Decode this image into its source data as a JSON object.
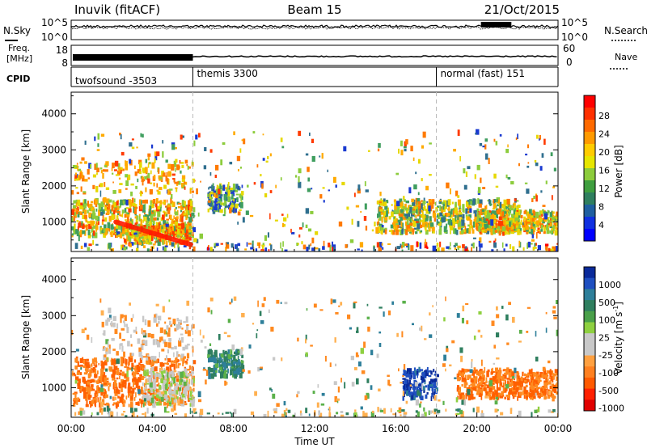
{
  "header": {
    "station": "Inuvik (fitACF)",
    "beam": "Beam 15",
    "date": "21/Oct/2015"
  },
  "status_panels": {
    "nsky_label": "N.Sky",
    "nsky_top_tick": "10^5",
    "nsky_bottom_tick": "10^0",
    "nsearch_label": "N.Search",
    "nsearch_top_tick": "10^5",
    "nsearch_bottom_tick": "10^0",
    "freq_label": "Freq.",
    "freq_unit": "[MHz]",
    "freq_top_tick": "18",
    "freq_bottom_tick": "8",
    "nave_label": "Nave",
    "nave_top_tick": "60",
    "nave_bottom_tick": "0",
    "cpid_label": "CPID"
  },
  "cpid_segments": [
    {
      "label": "twofsound -3503",
      "start_hour": 0
    },
    {
      "label": "themis 3300",
      "start_hour": 6
    },
    {
      "label": "normal (fast) 151",
      "start_hour": 18
    }
  ],
  "power_panel": {
    "ylabel": "Slant Range [km]",
    "colorbar_label": "Power [dB]",
    "colorbar_ticks": [
      "28",
      "24",
      "20",
      "16",
      "12",
      "8",
      "4"
    ],
    "colorbar_colors": [
      "#ff0000",
      "#ff3000",
      "#ff6a00",
      "#ff9a00",
      "#ffcc00",
      "#e6e600",
      "#8ccc3c",
      "#3f9e3f",
      "#2f7f5f",
      "#1f5fa0",
      "#1030e0",
      "#0000ff"
    ]
  },
  "velocity_panel": {
    "ylabel": "Slant Range [km]",
    "colorbar_label": "Velocity [m s",
    "colorbar_label_sup": "-1",
    "colorbar_label_end": "]",
    "colorbar_ticks": [
      "1000",
      "500",
      "100",
      "25",
      "-25",
      "-100",
      "-500",
      "-1000"
    ],
    "colorbar_colors": [
      "#0a2a9a",
      "#1f4fc0",
      "#2e7f9a",
      "#2f7f5f",
      "#4aa04a",
      "#8ed040",
      "#c8c8c8",
      "#c8c8c8",
      "#ffa040",
      "#ff8020",
      "#ff5a00",
      "#ff2000",
      "#e00000"
    ]
  },
  "x_axis": {
    "label": "Time UT",
    "ticks": [
      "00:00",
      "04:00",
      "08:00",
      "12:00",
      "16:00",
      "20:00",
      "00:00"
    ]
  },
  "chart_data": [
    {
      "type": "heatmap",
      "title": "Power [dB]",
      "xlabel": "Time UT",
      "ylabel": "Slant Range [km]",
      "xlim_hours": [
        0,
        24
      ],
      "ylim": [
        180,
        4600
      ],
      "y_ticks": [
        1000,
        2000,
        3000,
        4000
      ],
      "colorbar_range": [
        0,
        32
      ],
      "features": [
        {
          "name": "twofsound band",
          "hours": [
            0,
            6
          ],
          "range_km": [
            600,
            1600
          ],
          "power_db": 26
        },
        {
          "name": "descending trace",
          "hours": [
            2.5,
            5.8
          ],
          "range_km": [
            400,
            900
          ],
          "power_db": 28
        },
        {
          "name": "themis patch",
          "hours": [
            6.7,
            8.4
          ],
          "range_km": [
            1300,
            2000
          ],
          "power_db": 18
        },
        {
          "name": "afternoon band",
          "hours": [
            15,
            22
          ],
          "range_km": [
            700,
            1600
          ],
          "power_db": 24
        },
        {
          "name": "evening band",
          "hours": [
            20,
            24
          ],
          "range_km": [
            700,
            1300
          ],
          "power_db": 26
        }
      ]
    },
    {
      "type": "heatmap",
      "title": "Velocity [m s-1]",
      "xlabel": "Time UT",
      "ylabel": "Slant Range [km]",
      "xlim_hours": [
        0,
        24
      ],
      "ylim": [
        180,
        4600
      ],
      "y_ticks": [
        1000,
        2000,
        3000,
        4000
      ],
      "colorbar_range": [
        -1000,
        1000
      ],
      "features": [
        {
          "name": "morning flow",
          "hours": [
            0,
            6
          ],
          "range_km": [
            500,
            1800
          ],
          "velocity": -300
        },
        {
          "name": "ground scatter",
          "hours": [
            3.5,
            6
          ],
          "range_km": [
            500,
            1500
          ],
          "velocity": 0
        },
        {
          "name": "themis patch",
          "hours": [
            6.7,
            8.4
          ],
          "range_km": [
            1300,
            2000
          ],
          "velocity": 100
        },
        {
          "name": "approach flow",
          "hours": [
            16.3,
            18
          ],
          "range_km": [
            700,
            1500
          ],
          "velocity": 700
        },
        {
          "name": "evening flow",
          "hours": [
            19,
            24
          ],
          "range_km": [
            700,
            1500
          ],
          "velocity": -300
        }
      ]
    }
  ]
}
